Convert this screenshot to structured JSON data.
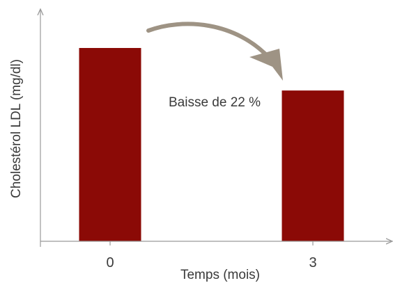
{
  "chart_data": {
    "type": "bar",
    "categories": [
      "0",
      "3"
    ],
    "values": [
      100,
      78
    ],
    "title": "",
    "xlabel": "Temps (mois)",
    "ylabel": "Cholestérol LDL (mg/dl)",
    "ylim": [
      0,
      100
    ],
    "grid": false,
    "annotation": "Baisse de 22 %",
    "bar_color": "#8b0a06",
    "arrow_color": "#9e9384",
    "axis_color": "#9a9a9a"
  }
}
